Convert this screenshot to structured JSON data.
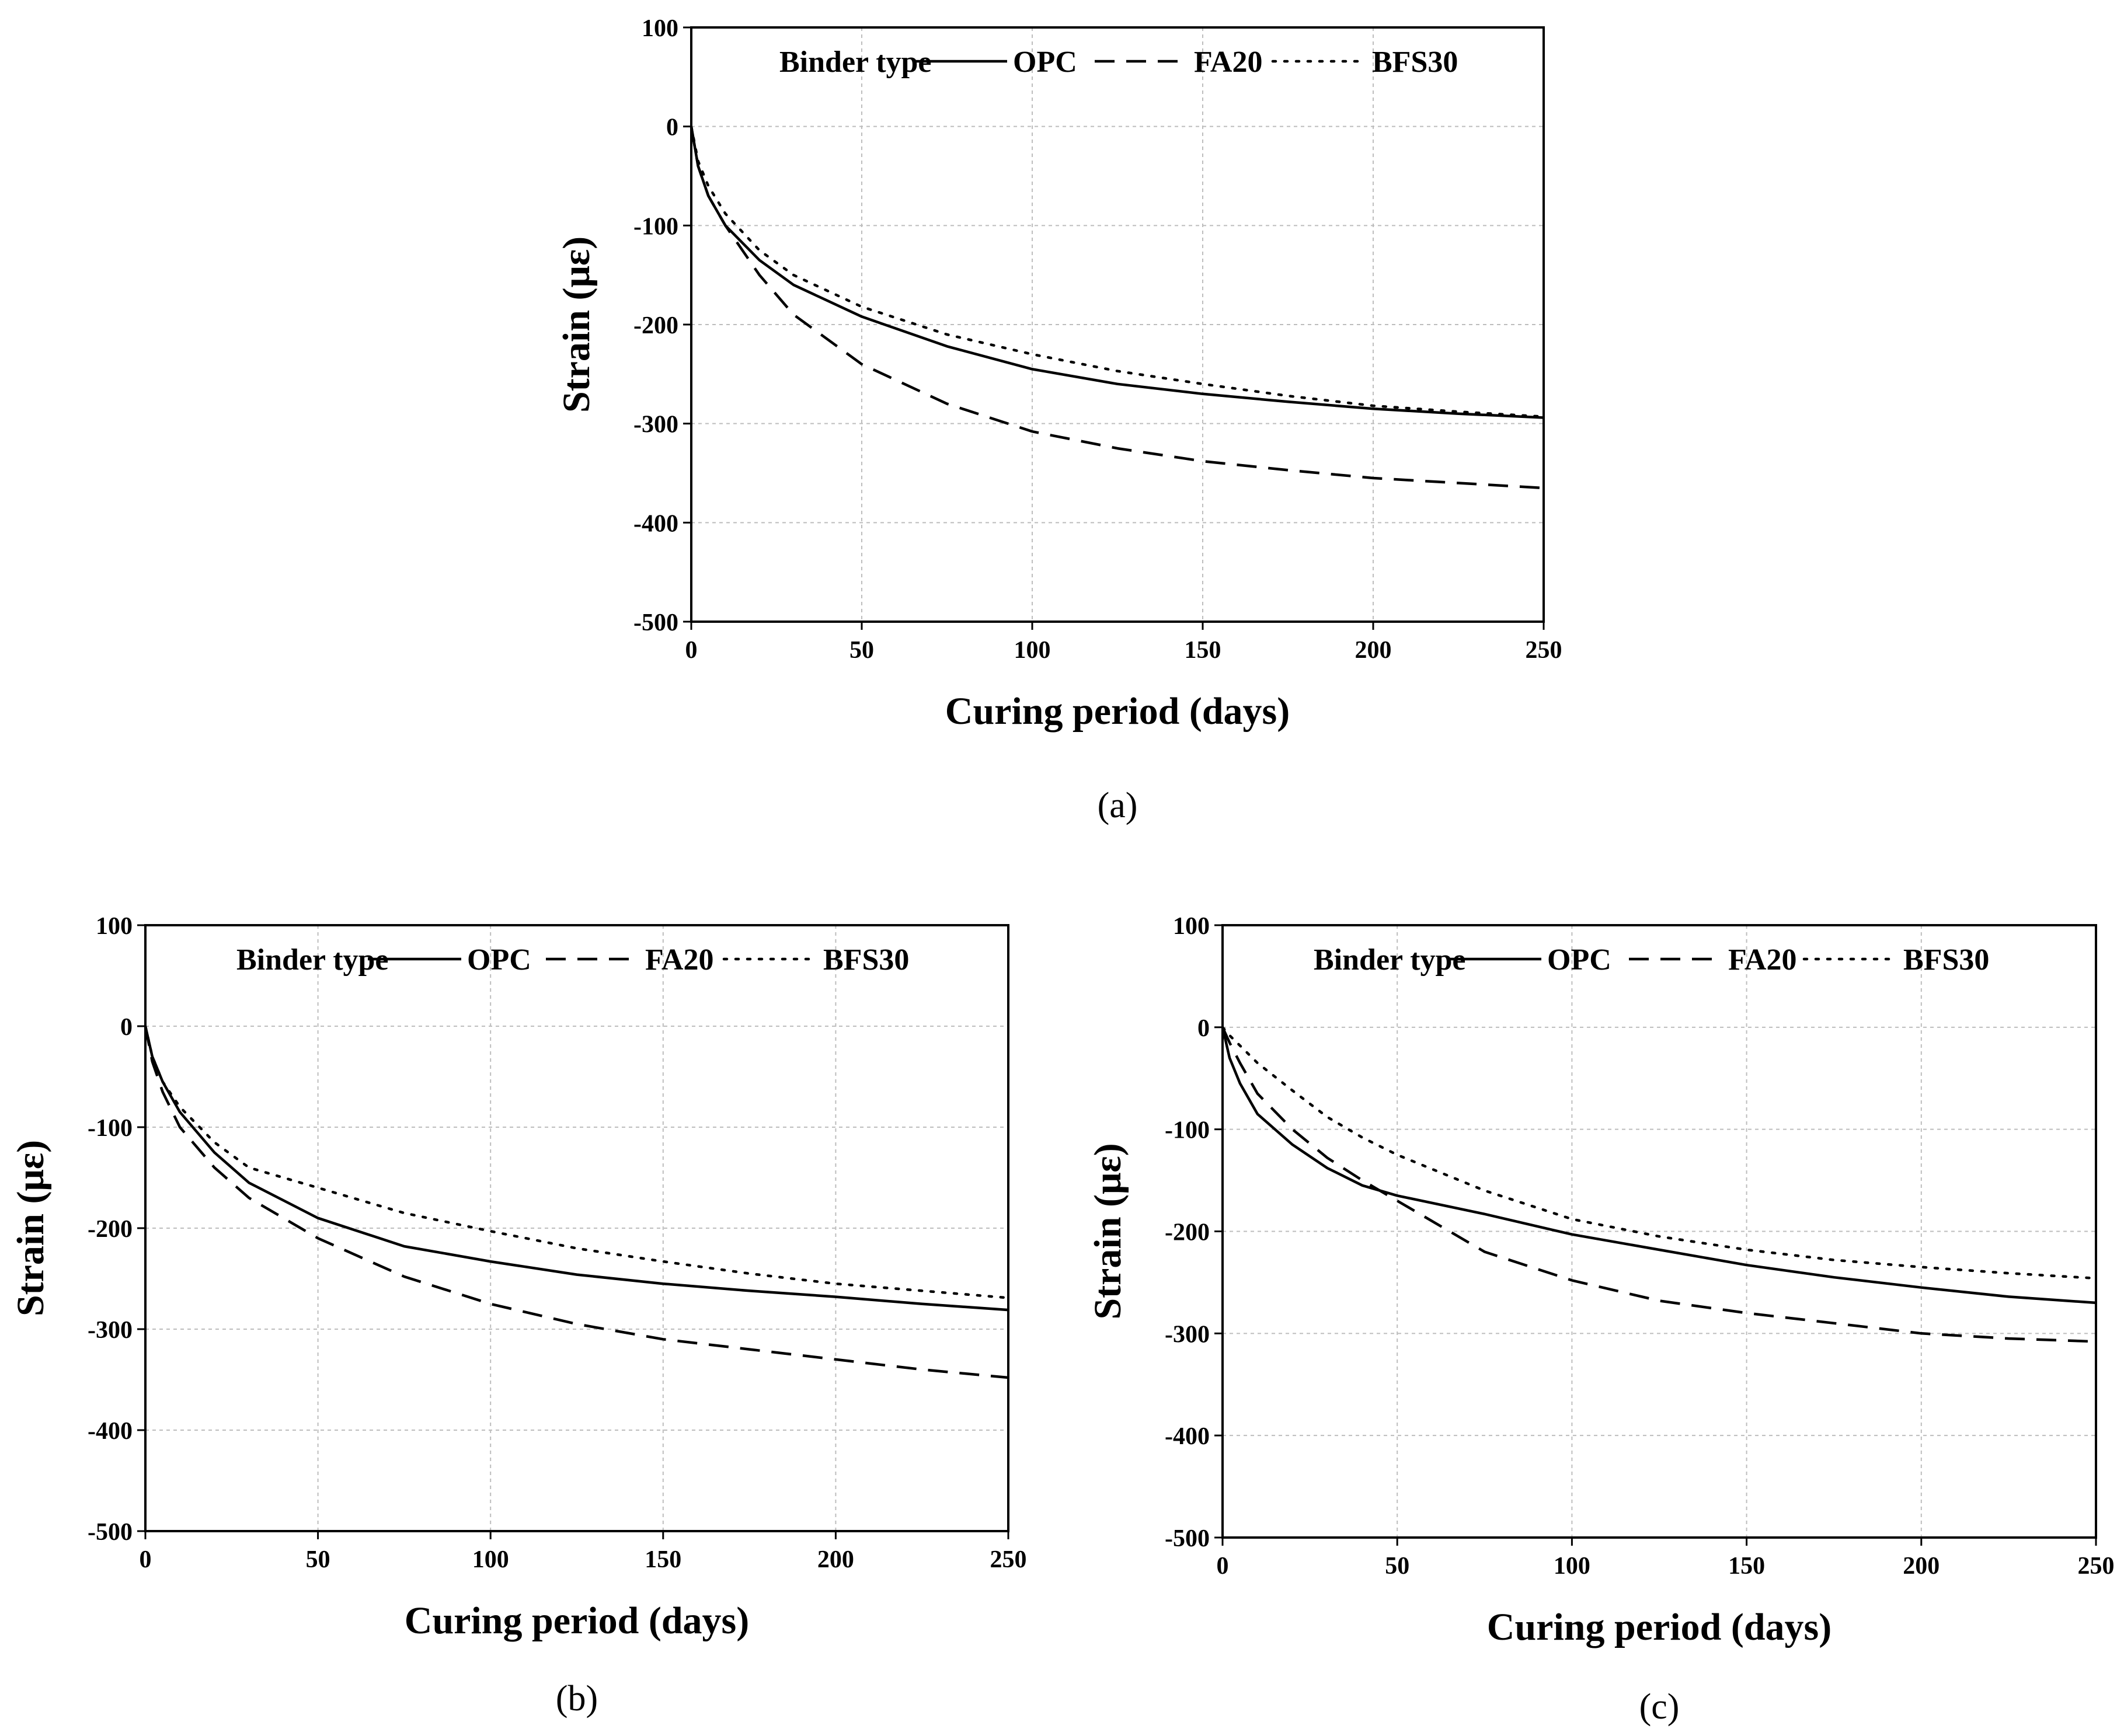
{
  "chart_data": [
    {
      "type": "line",
      "panel_label": "(a)",
      "xlabel": "Curing period (days)",
      "ylabel": "Strain (με)",
      "xlim": [
        0,
        250
      ],
      "ylim": [
        -500,
        100
      ],
      "xticks": [
        0,
        50,
        100,
        150,
        200,
        250
      ],
      "yticks": [
        100,
        0,
        -100,
        -200,
        -300,
        -400,
        -500
      ],
      "grid": true,
      "legend": {
        "title": "Binder type",
        "placement": "top"
      },
      "series": [
        {
          "name": "OPC",
          "style": "solid",
          "x": [
            0,
            2,
            5,
            10,
            20,
            30,
            50,
            75,
            100,
            125,
            150,
            175,
            200,
            225,
            250
          ],
          "y": [
            0,
            -40,
            -70,
            -100,
            -135,
            -160,
            -192,
            -222,
            -245,
            -260,
            -270,
            -278,
            -285,
            -290,
            -294
          ]
        },
        {
          "name": "FA20",
          "style": "dashed",
          "x": [
            0,
            2,
            5,
            10,
            20,
            30,
            50,
            75,
            100,
            125,
            150,
            175,
            200,
            225,
            250
          ],
          "y": [
            0,
            -40,
            -70,
            -100,
            -150,
            -190,
            -240,
            -280,
            -308,
            -325,
            -338,
            -347,
            -355,
            -360,
            -365
          ]
        },
        {
          "name": "BFS30",
          "style": "dotted",
          "x": [
            0,
            2,
            5,
            10,
            20,
            30,
            50,
            75,
            100,
            125,
            150,
            175,
            200,
            225,
            250
          ],
          "y": [
            0,
            -35,
            -60,
            -88,
            -125,
            -150,
            -182,
            -210,
            -230,
            -247,
            -260,
            -272,
            -282,
            -288,
            -293
          ]
        }
      ]
    },
    {
      "type": "line",
      "panel_label": "(b)",
      "xlabel": "Curing period (days)",
      "ylabel": "Strain (με)",
      "xlim": [
        0,
        250
      ],
      "ylim": [
        -500,
        100
      ],
      "xticks": [
        0,
        50,
        100,
        150,
        200,
        250
      ],
      "yticks": [
        100,
        0,
        -100,
        -200,
        -300,
        -400,
        -500
      ],
      "grid": true,
      "legend": {
        "title": "Binder type",
        "placement": "top"
      },
      "series": [
        {
          "name": "OPC",
          "style": "solid",
          "x": [
            0,
            2,
            5,
            10,
            20,
            30,
            50,
            75,
            100,
            125,
            150,
            175,
            200,
            225,
            250
          ],
          "y": [
            0,
            -30,
            -55,
            -85,
            -125,
            -155,
            -190,
            -218,
            -233,
            -246,
            -255,
            -262,
            -268,
            -275,
            -281
          ]
        },
        {
          "name": "FA20",
          "style": "dashed",
          "x": [
            0,
            2,
            5,
            10,
            20,
            30,
            50,
            75,
            100,
            125,
            150,
            175,
            200,
            225,
            250
          ],
          "y": [
            0,
            -35,
            -65,
            -100,
            -140,
            -170,
            -210,
            -248,
            -275,
            -295,
            -310,
            -320,
            -330,
            -340,
            -348
          ]
        },
        {
          "name": "BFS30",
          "style": "dotted",
          "x": [
            0,
            2,
            5,
            10,
            20,
            30,
            50,
            75,
            100,
            125,
            150,
            175,
            200,
            225,
            250
          ],
          "y": [
            0,
            -30,
            -55,
            -80,
            -115,
            -140,
            -160,
            -185,
            -203,
            -220,
            -233,
            -245,
            -255,
            -262,
            -269
          ]
        }
      ]
    },
    {
      "type": "line",
      "panel_label": "(c)",
      "xlabel": "Curing period (days)",
      "ylabel": "Strain (με)",
      "xlim": [
        0,
        250
      ],
      "ylim": [
        -500,
        100
      ],
      "xticks": [
        0,
        50,
        100,
        150,
        200,
        250
      ],
      "yticks": [
        100,
        0,
        -100,
        -200,
        -300,
        -400,
        -500
      ],
      "grid": true,
      "legend": {
        "title": "Binder type",
        "placement": "top"
      },
      "series": [
        {
          "name": "OPC",
          "style": "solid",
          "x": [
            0,
            2,
            5,
            10,
            20,
            30,
            40,
            50,
            75,
            100,
            125,
            150,
            175,
            200,
            225,
            250
          ],
          "y": [
            0,
            -30,
            -55,
            -85,
            -115,
            -138,
            -155,
            -165,
            -183,
            -203,
            -218,
            -233,
            -245,
            -255,
            -264,
            -270
          ]
        },
        {
          "name": "FA20",
          "style": "dashed",
          "x": [
            0,
            2,
            5,
            10,
            20,
            30,
            40,
            50,
            75,
            100,
            125,
            150,
            175,
            200,
            225,
            250
          ],
          "y": [
            0,
            -15,
            -35,
            -65,
            -100,
            -128,
            -150,
            -170,
            -220,
            -248,
            -268,
            -280,
            -290,
            -300,
            -305,
            -308
          ]
        },
        {
          "name": "BFS30",
          "style": "dotted",
          "x": [
            0,
            2,
            5,
            10,
            20,
            30,
            40,
            50,
            75,
            100,
            125,
            150,
            175,
            200,
            225,
            250
          ],
          "y": [
            0,
            -8,
            -18,
            -35,
            -62,
            -88,
            -108,
            -125,
            -160,
            -188,
            -205,
            -218,
            -228,
            -235,
            -241,
            -246
          ]
        }
      ]
    }
  ]
}
